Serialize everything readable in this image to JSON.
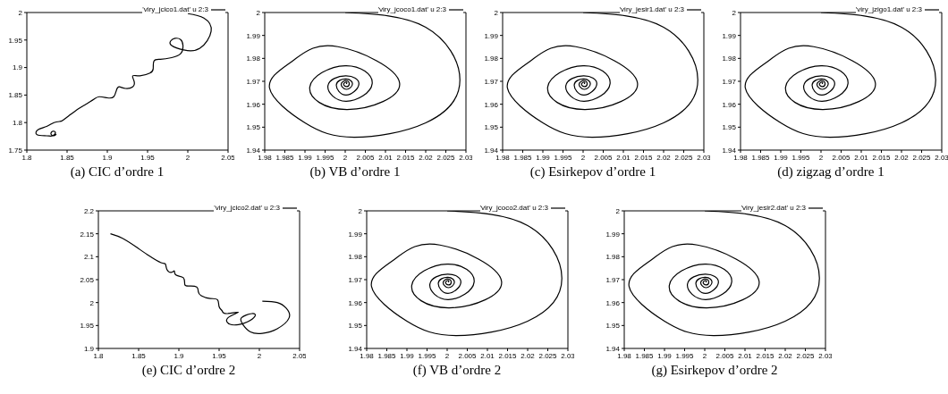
{
  "chart_data": [
    {
      "type": "line",
      "title": "(a) CIC d’ordre 1",
      "legend": "top right",
      "xlim": [
        1.8,
        2.05
      ],
      "ylim": [
        1.75,
        2
      ],
      "xticks": [
        1.8,
        1.85,
        1.9,
        1.95,
        2,
        2.05
      ],
      "yticks": [
        1.75,
        1.8,
        1.85,
        1.9,
        1.95,
        2
      ],
      "series": [
        {
          "name": "'viry_jcico1.dat' u 2:3",
          "color": "#000000",
          "x": [
            2.0,
            2.02,
            2.029,
            2.015,
            1.995,
            1.98,
            1.9786,
            1.984,
            1.991,
            1.994,
            1.991,
            1.98,
            1.966,
            1.958,
            1.957,
            1.953,
            1.9406,
            1.9315,
            1.9333,
            1.9315,
            1.9225,
            1.915,
            1.9116,
            1.908,
            1.9,
            1.89,
            1.883,
            1.872,
            1.861,
            1.852,
            1.8446,
            1.841,
            1.8337,
            1.8246,
            1.8138,
            1.8127,
            1.8246,
            1.832,
            1.8355,
            1.832,
            1.83,
            1.8337,
            1.8366
          ],
          "values": [
            1.998,
            1.99,
            1.966,
            1.935,
            1.932,
            1.94,
            1.948,
            1.953,
            1.951,
            1.94,
            1.925,
            1.918,
            1.915,
            1.912,
            1.898,
            1.89,
            1.885,
            1.885,
            1.875,
            1.865,
            1.862,
            1.865,
            1.86,
            1.847,
            1.845,
            1.847,
            1.842,
            1.832,
            1.822,
            1.812,
            1.804,
            1.802,
            1.8,
            1.793,
            1.787,
            1.778,
            1.776,
            1.776,
            1.782,
            1.784,
            1.779,
            1.776,
            1.779
          ]
        }
      ]
    },
    {
      "type": "line",
      "title": "(b) VB d’ordre 1",
      "legend": "top right",
      "xlim": [
        1.98,
        2.03
      ],
      "ylim": [
        1.94,
        2
      ],
      "xticks": [
        1.98,
        1.985,
        1.99,
        1.995,
        2,
        2.005,
        2.01,
        2.015,
        2.02,
        2.025,
        2.03
      ],
      "yticks": [
        1.94,
        1.95,
        1.96,
        1.97,
        1.98,
        1.99,
        2
      ],
      "series": [
        {
          "name": "'viry_jcoco1.dat' u 2:3",
          "color": "#000000",
          "x": [
            2.0,
            2.02,
            2.0285,
            2.02,
            2.0022,
            1.99,
            1.9812,
            1.987,
            1.9982,
            2.0135,
            2.0005,
            1.9912,
            2.0,
            2.0067,
            2.0002,
            1.9957,
            2.0001,
            2.0034,
            2.0002,
            1.9978,
            2.0002,
            2.0018,
            2.0003,
            1.999,
            2.0003,
            2.001,
            2.0003,
            1.9996,
            2.0003,
            2.0003
          ],
          "values": [
            2.0,
            1.9936,
            1.9706,
            1.9519,
            1.9456,
            1.9519,
            1.967,
            1.979,
            1.9851,
            1.9694,
            1.9577,
            1.9675,
            1.9768,
            1.969,
            1.9613,
            1.968,
            1.9724,
            1.9688,
            1.964,
            1.9685,
            1.971,
            1.9688,
            1.9665,
            1.9688,
            1.9703,
            1.9688,
            1.9677,
            1.9688,
            1.9697,
            1.9688
          ]
        }
      ]
    },
    {
      "type": "line",
      "title": "(c) Esirkepov d’ordre 1",
      "legend": "top right",
      "xlim": [
        1.98,
        2.03
      ],
      "ylim": [
        1.94,
        2
      ],
      "xticks": [
        1.98,
        1.985,
        1.99,
        1.995,
        2,
        2.005,
        2.01,
        2.015,
        2.02,
        2.025,
        2.03
      ],
      "yticks": [
        1.94,
        1.95,
        1.96,
        1.97,
        1.98,
        1.99,
        2
      ],
      "series": [
        {
          "name": "'viry_jesir1.dat' u 2:3",
          "color": "#000000",
          "x": [
            2.0,
            2.02,
            2.0285,
            2.02,
            2.0022,
            1.99,
            1.9812,
            1.987,
            1.9982,
            2.0135,
            2.0005,
            1.9912,
            2.0,
            2.0067,
            2.0002,
            1.9957,
            2.0001,
            2.0034,
            2.0002,
            1.9978,
            2.0002,
            2.0018,
            2.0003,
            1.999,
            2.0003,
            2.001,
            2.0003,
            1.9996,
            2.0003,
            2.0003
          ],
          "values": [
            2.0,
            1.9936,
            1.9706,
            1.9519,
            1.9456,
            1.9519,
            1.967,
            1.979,
            1.9851,
            1.9694,
            1.9577,
            1.9675,
            1.9768,
            1.969,
            1.9613,
            1.968,
            1.9724,
            1.9688,
            1.964,
            1.9685,
            1.971,
            1.9688,
            1.9665,
            1.9688,
            1.9703,
            1.9688,
            1.9677,
            1.9688,
            1.9697,
            1.9688
          ]
        }
      ]
    },
    {
      "type": "line",
      "title": "(d) zigzag d’ordre 1",
      "legend": "top right",
      "xlim": [
        1.98,
        2.03
      ],
      "ylim": [
        1.94,
        2
      ],
      "xticks": [
        1.98,
        1.985,
        1.99,
        1.995,
        2,
        2.005,
        2.01,
        2.015,
        2.02,
        2.025,
        2.03
      ],
      "yticks": [
        1.94,
        1.95,
        1.96,
        1.97,
        1.98,
        1.99,
        2
      ],
      "series": [
        {
          "name": "'viry_jzigo1.dat' u 2:3",
          "color": "#000000",
          "x": [
            2.0,
            2.02,
            2.0285,
            2.02,
            2.0022,
            1.99,
            1.9812,
            1.987,
            1.9982,
            2.0135,
            2.0005,
            1.9912,
            2.0,
            2.0067,
            2.0002,
            1.9957,
            2.0001,
            2.0034,
            2.0002,
            1.9978,
            2.0002,
            2.0018,
            2.0003,
            1.999,
            2.0003,
            2.001,
            2.0003,
            1.9996,
            2.0003,
            2.0003
          ],
          "values": [
            2.0,
            1.9936,
            1.9706,
            1.9519,
            1.9456,
            1.9519,
            1.967,
            1.979,
            1.9851,
            1.9694,
            1.9577,
            1.9675,
            1.9768,
            1.969,
            1.9613,
            1.968,
            1.9724,
            1.9688,
            1.964,
            1.9685,
            1.971,
            1.9688,
            1.9665,
            1.9688,
            1.9703,
            1.9688,
            1.9677,
            1.9688,
            1.9697,
            1.9688
          ]
        }
      ]
    },
    {
      "type": "line",
      "title": "(e) CIC d’ordre 2",
      "legend": "top right",
      "xlim": [
        1.8,
        2.05
      ],
      "ylim": [
        1.9,
        2.2
      ],
      "xticks": [
        1.8,
        1.85,
        1.9,
        1.95,
        2,
        2.05
      ],
      "yticks": [
        1.9,
        1.95,
        2,
        2.05,
        2.1,
        2.15,
        2.2
      ],
      "series": [
        {
          "name": "'viry_jcico2.dat' u 2:3",
          "color": "#000000",
          "x": [
            1.815,
            1.83,
            1.848,
            1.863,
            1.8778,
            1.8833,
            1.8852,
            1.8907,
            1.8944,
            1.8963,
            1.9056,
            1.9074,
            1.913,
            1.9222,
            1.9241,
            1.9278,
            1.9389,
            1.9481,
            1.95,
            1.9537,
            1.9593,
            1.9741,
            1.9611,
            1.963,
            1.9741,
            1.9852,
            1.9944,
            1.9907,
            1.9778,
            1.9796,
            1.9889,
            2.0037,
            2.0222,
            2.037,
            2.0333,
            2.0222,
            2.0037
          ],
          "values": [
            2.15,
            2.14,
            2.12,
            2.102,
            2.087,
            2.084,
            2.072,
            2.066,
            2.069,
            2.06,
            2.054,
            2.039,
            2.036,
            2.034,
            2.024,
            2.015,
            2.009,
            2.006,
            1.991,
            1.982,
            1.976,
            1.979,
            1.967,
            1.953,
            1.952,
            1.958,
            1.97,
            1.976,
            1.967,
            1.952,
            1.936,
            1.933,
            1.943,
            1.967,
            1.988,
            2.0,
            2.003
          ]
        }
      ]
    },
    {
      "type": "line",
      "title": "(f) VB d’ordre 2",
      "legend": "top right",
      "xlim": [
        1.98,
        2.03
      ],
      "ylim": [
        1.94,
        2
      ],
      "xticks": [
        1.98,
        1.985,
        1.99,
        1.995,
        2,
        2.005,
        2.01,
        2.015,
        2.02,
        2.025,
        2.03
      ],
      "yticks": [
        1.94,
        1.95,
        1.96,
        1.97,
        1.98,
        1.99,
        2
      ],
      "series": [
        {
          "name": "'viry_jcoco2.dat' u 2:3",
          "color": "#000000",
          "x": [
            2.0,
            2.02,
            2.0285,
            2.02,
            2.0022,
            1.99,
            1.9812,
            1.987,
            1.9982,
            2.0135,
            2.0005,
            1.9912,
            2.0,
            2.0067,
            2.0002,
            1.9957,
            2.0001,
            2.0034,
            2.0002,
            1.9978,
            2.0002,
            2.0018,
            2.0003,
            1.999,
            2.0003,
            2.001,
            2.0003,
            1.9996,
            2.0003,
            2.0003
          ],
          "values": [
            2.0,
            1.9936,
            1.9706,
            1.9519,
            1.9456,
            1.9519,
            1.967,
            1.979,
            1.9851,
            1.9694,
            1.9577,
            1.9675,
            1.9768,
            1.969,
            1.9613,
            1.968,
            1.9724,
            1.9688,
            1.964,
            1.9685,
            1.971,
            1.9688,
            1.9665,
            1.9688,
            1.9703,
            1.9688,
            1.9677,
            1.9688,
            1.9697,
            1.9688
          ]
        }
      ]
    },
    {
      "type": "line",
      "title": "(g) Esirkepov d’ordre 2",
      "legend": "top right",
      "xlim": [
        1.98,
        2.03
      ],
      "ylim": [
        1.94,
        2
      ],
      "xticks": [
        1.98,
        1.985,
        1.99,
        1.995,
        2,
        2.005,
        2.01,
        2.015,
        2.02,
        2.025,
        2.03
      ],
      "yticks": [
        1.94,
        1.95,
        1.96,
        1.97,
        1.98,
        1.99,
        2
      ],
      "series": [
        {
          "name": "'viry_jesir2.dat' u 2:3",
          "color": "#000000",
          "x": [
            2.0,
            2.02,
            2.0285,
            2.02,
            2.0022,
            1.99,
            1.9812,
            1.987,
            1.9982,
            2.0135,
            2.0005,
            1.9912,
            2.0,
            2.0067,
            2.0002,
            1.9957,
            2.0001,
            2.0034,
            2.0002,
            1.9978,
            2.0002,
            2.0018,
            2.0003,
            1.999,
            2.0003,
            2.001,
            2.0003,
            1.9996,
            2.0003,
            2.0003
          ],
          "values": [
            2.0,
            1.9936,
            1.9706,
            1.9519,
            1.9456,
            1.9519,
            1.967,
            1.979,
            1.9851,
            1.9694,
            1.9577,
            1.9675,
            1.9768,
            1.969,
            1.9613,
            1.968,
            1.9724,
            1.9688,
            1.964,
            1.9685,
            1.971,
            1.9688,
            1.9665,
            1.9688,
            1.9703,
            1.9688,
            1.9677,
            1.9688,
            1.9697,
            1.9688
          ]
        }
      ]
    }
  ]
}
